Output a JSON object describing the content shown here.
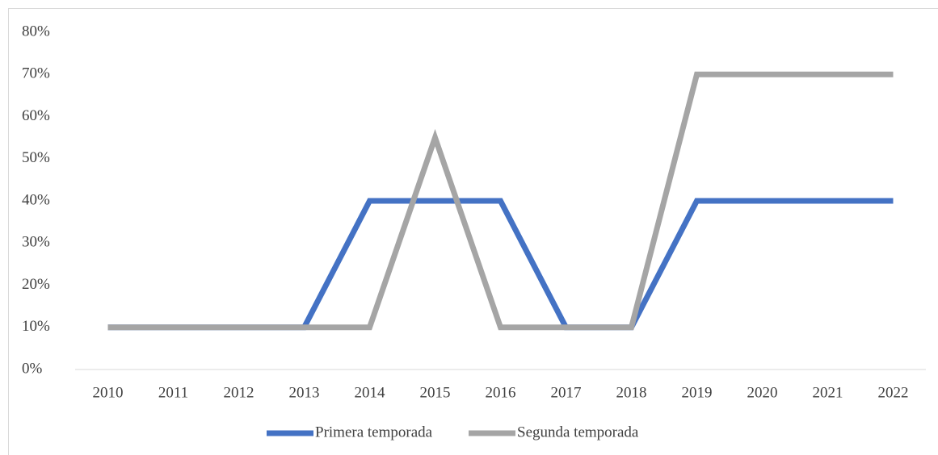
{
  "chart_data": {
    "type": "line",
    "categories": [
      "2010",
      "2011",
      "2012",
      "2013",
      "2014",
      "2015",
      "2016",
      "2017",
      "2018",
      "2019",
      "2020",
      "2021",
      "2022"
    ],
    "series": [
      {
        "name": "Primera temporada",
        "color": "#4472c4",
        "values": [
          10,
          10,
          10,
          10,
          40,
          40,
          40,
          10,
          10,
          40,
          40,
          40,
          40
        ]
      },
      {
        "name": "Segunda temporada",
        "color": "#a5a5a5",
        "values": [
          10,
          10,
          10,
          10,
          10,
          55,
          10,
          10,
          10,
          70,
          70,
          70,
          70
        ]
      }
    ],
    "ylim": [
      0,
      80
    ],
    "yticks": [
      {
        "value": 0,
        "label": "0%"
      },
      {
        "value": 10,
        "label": "10%"
      },
      {
        "value": 20,
        "label": "20%"
      },
      {
        "value": 30,
        "label": "30%"
      },
      {
        "value": 40,
        "label": "40%"
      },
      {
        "value": 50,
        "label": "50%"
      },
      {
        "value": 60,
        "label": "60%"
      },
      {
        "value": 70,
        "label": "70%"
      },
      {
        "value": 80,
        "label": "80%"
      }
    ],
    "legend": "bottom"
  }
}
